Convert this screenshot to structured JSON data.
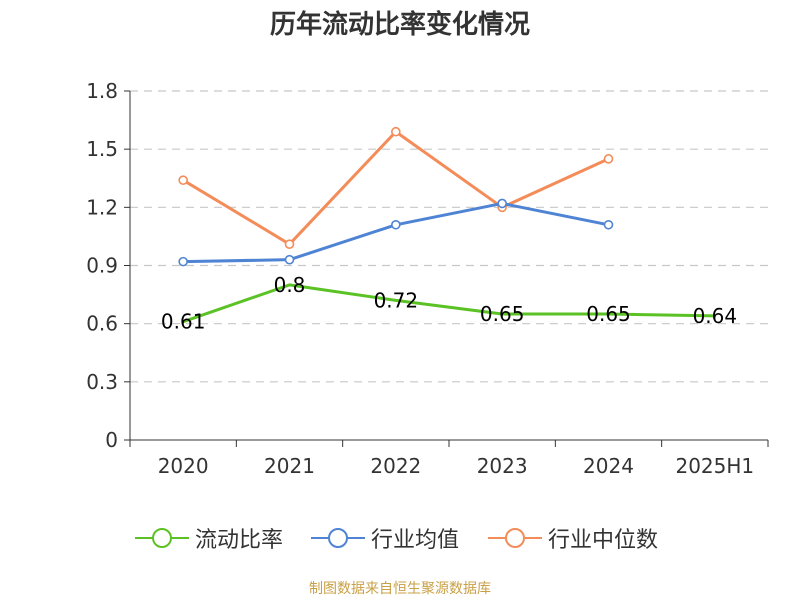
{
  "chart_data": {
    "type": "line",
    "title": "历年流动比率变化情况",
    "categories": [
      "2020",
      "2021",
      "2022",
      "2023",
      "2024",
      "2025H1"
    ],
    "ylim": [
      0,
      1.8
    ],
    "yticks": [
      "0",
      "0.3",
      "0.6",
      "0.9",
      "1.2",
      "1.5",
      "1.8"
    ],
    "ytick_values": [
      0,
      0.3,
      0.6,
      0.9,
      1.2,
      1.5,
      1.8
    ],
    "grid": true,
    "legend_position": "bottom",
    "series": [
      {
        "name": "流动比率",
        "color": "#5bc225",
        "values": [
          0.61,
          0.8,
          0.72,
          0.65,
          0.65,
          0.64
        ],
        "labels": [
          "0.61",
          "0.8",
          "0.72",
          "0.65",
          "0.65",
          "0.64"
        ]
      },
      {
        "name": "行业均值",
        "color": "#4f84d4",
        "values": [
          0.92,
          0.93,
          1.11,
          1.22,
          1.11,
          null
        ]
      },
      {
        "name": "行业中位数",
        "color": "#f48c5a",
        "values": [
          1.34,
          1.01,
          1.59,
          1.2,
          1.45,
          null
        ]
      }
    ]
  },
  "footer": {
    "source": "制图数据来自恒生聚源数据库"
  }
}
